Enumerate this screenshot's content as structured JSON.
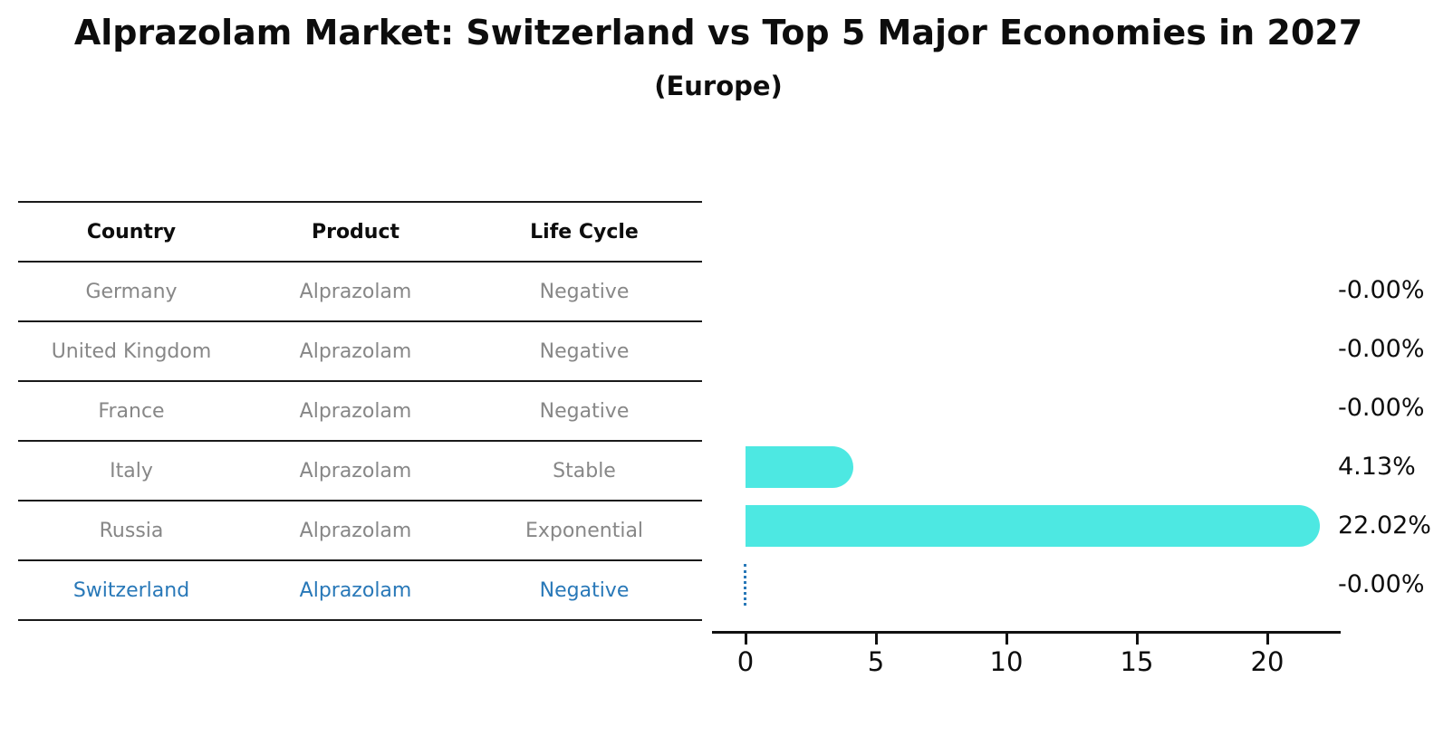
{
  "title": "Alprazolam Market: Switzerland vs Top 5 Major Economies in 2027",
  "subtitle": "(Europe)",
  "table": {
    "headers": [
      "Country",
      "Product",
      "Life Cycle"
    ],
    "rows": [
      {
        "country": "Germany",
        "product": "Alprazolam",
        "life_cycle": "Negative",
        "highlighted": false
      },
      {
        "country": "United Kingdom",
        "product": "Alprazolam",
        "life_cycle": "Negative",
        "highlighted": false
      },
      {
        "country": "France",
        "product": "Alprazolam",
        "life_cycle": "Negative",
        "highlighted": false
      },
      {
        "country": "Italy",
        "product": "Alprazolam",
        "life_cycle": "Stable",
        "highlighted": false
      },
      {
        "country": "Russia",
        "product": "Alprazolam",
        "life_cycle": "Exponential",
        "highlighted": false
      },
      {
        "country": "Switzerland",
        "product": "Alprazolam",
        "life_cycle": "Negative",
        "highlighted": true
      }
    ]
  },
  "chart_data": {
    "type": "bar",
    "orientation": "horizontal",
    "title": "Alprazolam Market: Switzerland vs Top 5 Major Economies in 2027 (Europe)",
    "categories": [
      "Germany",
      "United Kingdom",
      "France",
      "Italy",
      "Russia",
      "Switzerland"
    ],
    "values": [
      -0.0,
      -0.0,
      -0.0,
      4.13,
      22.02,
      -0.0
    ],
    "value_labels": [
      "-0.00%",
      "-0.00%",
      "-0.00%",
      "4.13%",
      "22.02%",
      "-0.00%"
    ],
    "x_ticks": [
      0,
      5,
      10,
      15,
      20
    ],
    "xlim": [
      -1.3,
      23.2
    ],
    "grid": false,
    "legend": false,
    "bar_color": "#4de8e2",
    "highlight_index": 5,
    "highlight_marker": "dotted-zero-line"
  },
  "colors": {
    "bar": "#4de8e2",
    "highlight_blue": "#2878b8",
    "muted_text": "#878787",
    "dark_text": "#0d0d0d",
    "axis": "#111111"
  }
}
